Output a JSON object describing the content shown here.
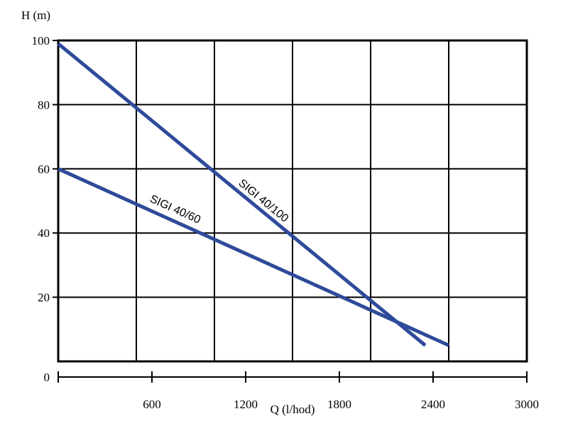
{
  "chart_data": {
    "type": "line",
    "ylabel": "H (m)",
    "xlabel": "Q (l/hod)",
    "xlim": [
      0,
      3000
    ],
    "ylim": [
      0,
      100
    ],
    "x_ticks": [
      600,
      1200,
      1800,
      2400,
      3000
    ],
    "x_tick_labels": [
      "600",
      "1200",
      "1800",
      "2400",
      "3000"
    ],
    "y_ticks": [
      0,
      20,
      40,
      60,
      80,
      100
    ],
    "y_tick_labels": [
      "0",
      "20",
      "40",
      "60",
      "80",
      "100"
    ],
    "grid": true,
    "line_color": "#2e4a9a",
    "series": [
      {
        "name": "SIGI 40/100",
        "points": [
          [
            0,
            99
          ],
          [
            2350,
            5
          ]
        ]
      },
      {
        "name": "SIGI 40/60",
        "points": [
          [
            0,
            60
          ],
          [
            2500,
            5
          ]
        ]
      }
    ]
  }
}
